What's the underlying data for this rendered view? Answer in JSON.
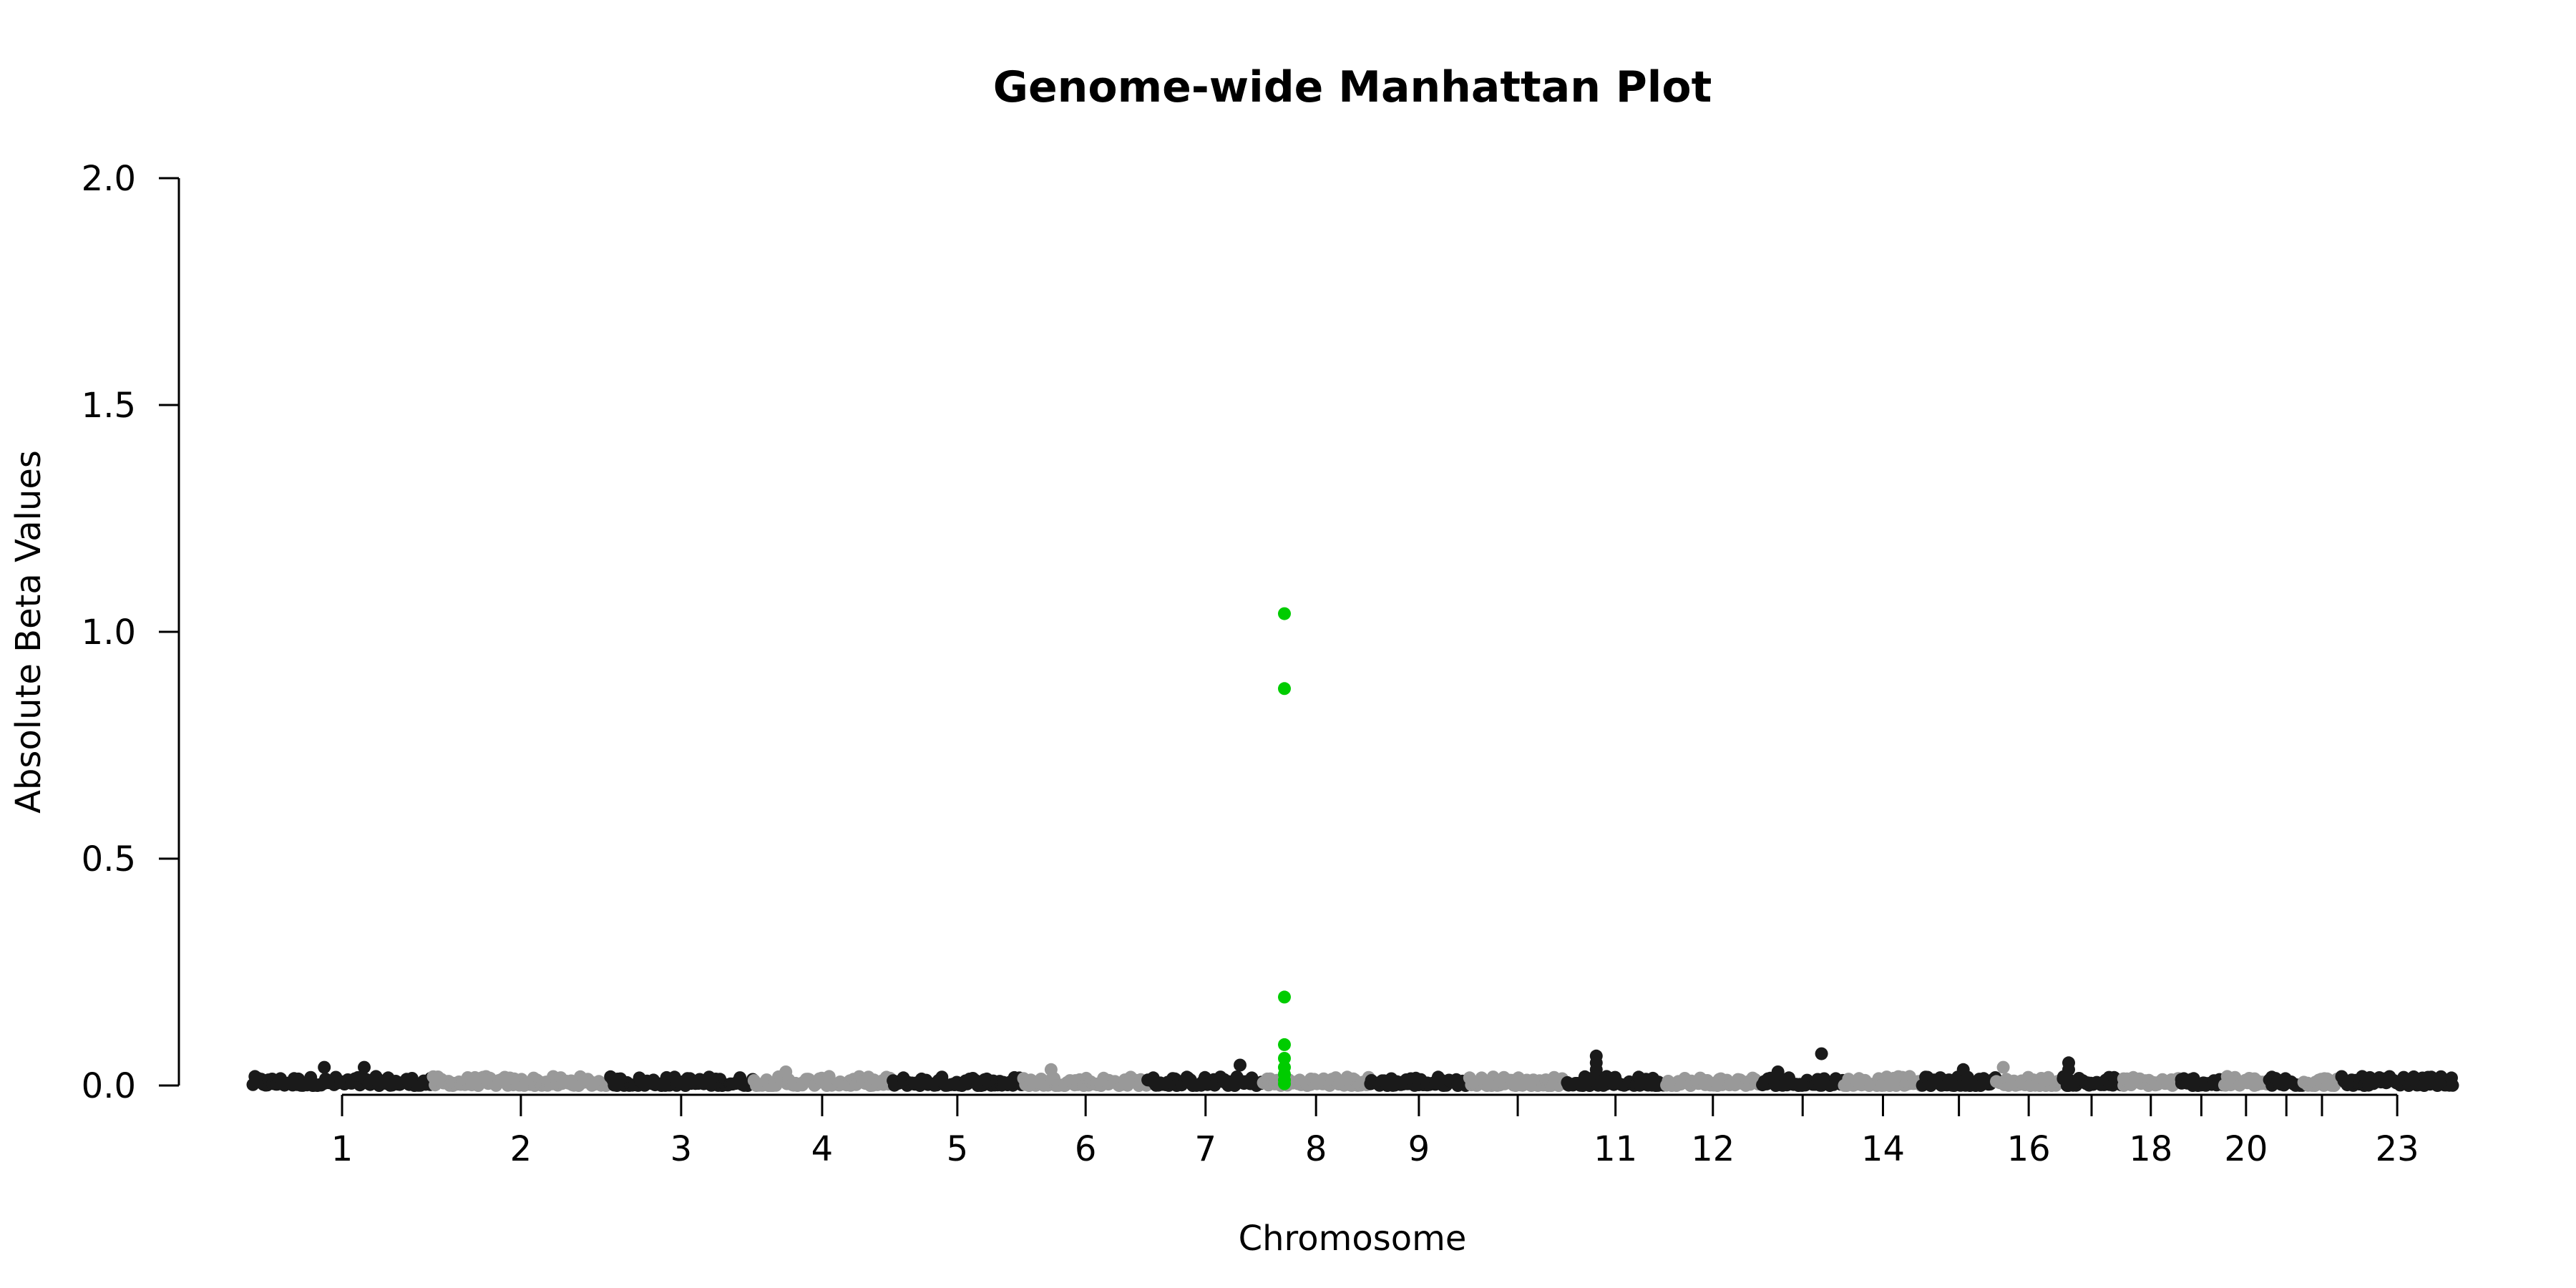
{
  "chart_data": {
    "type": "scatter",
    "title": "Genome-wide Manhattan Plot",
    "xlabel": "Chromosome",
    "ylabel": "Absolute Beta Values",
    "ylim": [
      0,
      2.0
    ],
    "y_ticks": [
      "0.0",
      "0.5",
      "1.0",
      "1.5",
      "2.0"
    ],
    "y_tick_values": [
      0,
      0.5,
      1.0,
      1.5,
      2.0
    ],
    "grid": false,
    "legend": "none",
    "colors": {
      "odd": "#1a1a1a",
      "even": "#999999",
      "highlight": "#00cc00"
    },
    "chromosomes": [
      {
        "chr": 1,
        "label": "1",
        "start": 0,
        "end": 249
      },
      {
        "chr": 2,
        "label": "2",
        "start": 249,
        "end": 492
      },
      {
        "chr": 3,
        "label": "3",
        "start": 492,
        "end": 690
      },
      {
        "chr": 4,
        "label": "4",
        "start": 690,
        "end": 880
      },
      {
        "chr": 5,
        "label": "5",
        "start": 880,
        "end": 1062
      },
      {
        "chr": 6,
        "label": "6",
        "start": 1062,
        "end": 1233
      },
      {
        "chr": 7,
        "label": "7",
        "start": 1233,
        "end": 1392
      },
      {
        "chr": 8,
        "label": "8",
        "start": 1392,
        "end": 1537
      },
      {
        "chr": 9,
        "label": "9",
        "start": 1537,
        "end": 1675
      },
      {
        "chr": 10,
        "label": "",
        "start": 1675,
        "end": 1809
      },
      {
        "chr": 11,
        "label": "11",
        "start": 1809,
        "end": 1944
      },
      {
        "chr": 12,
        "label": "12",
        "start": 1944,
        "end": 2077
      },
      {
        "chr": 13,
        "label": "",
        "start": 2077,
        "end": 2191
      },
      {
        "chr": 14,
        "label": "14",
        "start": 2191,
        "end": 2298
      },
      {
        "chr": 15,
        "label": "",
        "start": 2298,
        "end": 2400
      },
      {
        "chr": 16,
        "label": "16",
        "start": 2400,
        "end": 2490
      },
      {
        "chr": 17,
        "label": "",
        "start": 2490,
        "end": 2573
      },
      {
        "chr": 18,
        "label": "18",
        "start": 2573,
        "end": 2653
      },
      {
        "chr": 19,
        "label": "",
        "start": 2653,
        "end": 2712
      },
      {
        "chr": 20,
        "label": "20",
        "start": 2712,
        "end": 2776
      },
      {
        "chr": 21,
        "label": "",
        "start": 2776,
        "end": 2823
      },
      {
        "chr": 22,
        "label": "",
        "start": 2823,
        "end": 2874
      },
      {
        "chr": 23,
        "label": "23",
        "start": 2874,
        "end": 3030
      }
    ],
    "xlim": [
      -100,
      3070
    ],
    "highlight_points": [
      {
        "chr": 8,
        "pos": 1421,
        "y": 1.04
      },
      {
        "chr": 8,
        "pos": 1421,
        "y": 0.875
      },
      {
        "chr": 8,
        "pos": 1421,
        "y": 0.195
      },
      {
        "chr": 8,
        "pos": 1421,
        "y": 0.09
      },
      {
        "chr": 8,
        "pos": 1421,
        "y": 0.06
      },
      {
        "chr": 8,
        "pos": 1421,
        "y": 0.04
      },
      {
        "chr": 8,
        "pos": 1421,
        "y": 0.025
      },
      {
        "chr": 8,
        "pos": 1421,
        "y": 0.012
      },
      {
        "chr": 8,
        "pos": 1421,
        "y": 0.004
      }
    ],
    "peak_points": [
      {
        "chr": 1,
        "pos": 100,
        "y": 0.04
      },
      {
        "chr": 1,
        "pos": 155,
        "y": 0.04
      },
      {
        "chr": 4,
        "pos": 735,
        "y": 0.03
      },
      {
        "chr": 6,
        "pos": 1100,
        "y": 0.035
      },
      {
        "chr": 7,
        "pos": 1360,
        "y": 0.045
      },
      {
        "chr": 11,
        "pos": 1850,
        "y": 0.065
      },
      {
        "chr": 11,
        "pos": 1850,
        "y": 0.05
      },
      {
        "chr": 11,
        "pos": 1850,
        "y": 0.035
      },
      {
        "chr": 13,
        "pos": 2100,
        "y": 0.03
      },
      {
        "chr": 13,
        "pos": 2160,
        "y": 0.07
      },
      {
        "chr": 15,
        "pos": 2355,
        "y": 0.035
      },
      {
        "chr": 16,
        "pos": 2410,
        "y": 0.04
      },
      {
        "chr": 17,
        "pos": 2500,
        "y": 0.05
      },
      {
        "chr": 17,
        "pos": 2500,
        "y": 0.035
      }
    ],
    "background_max_y": 0.02
  }
}
